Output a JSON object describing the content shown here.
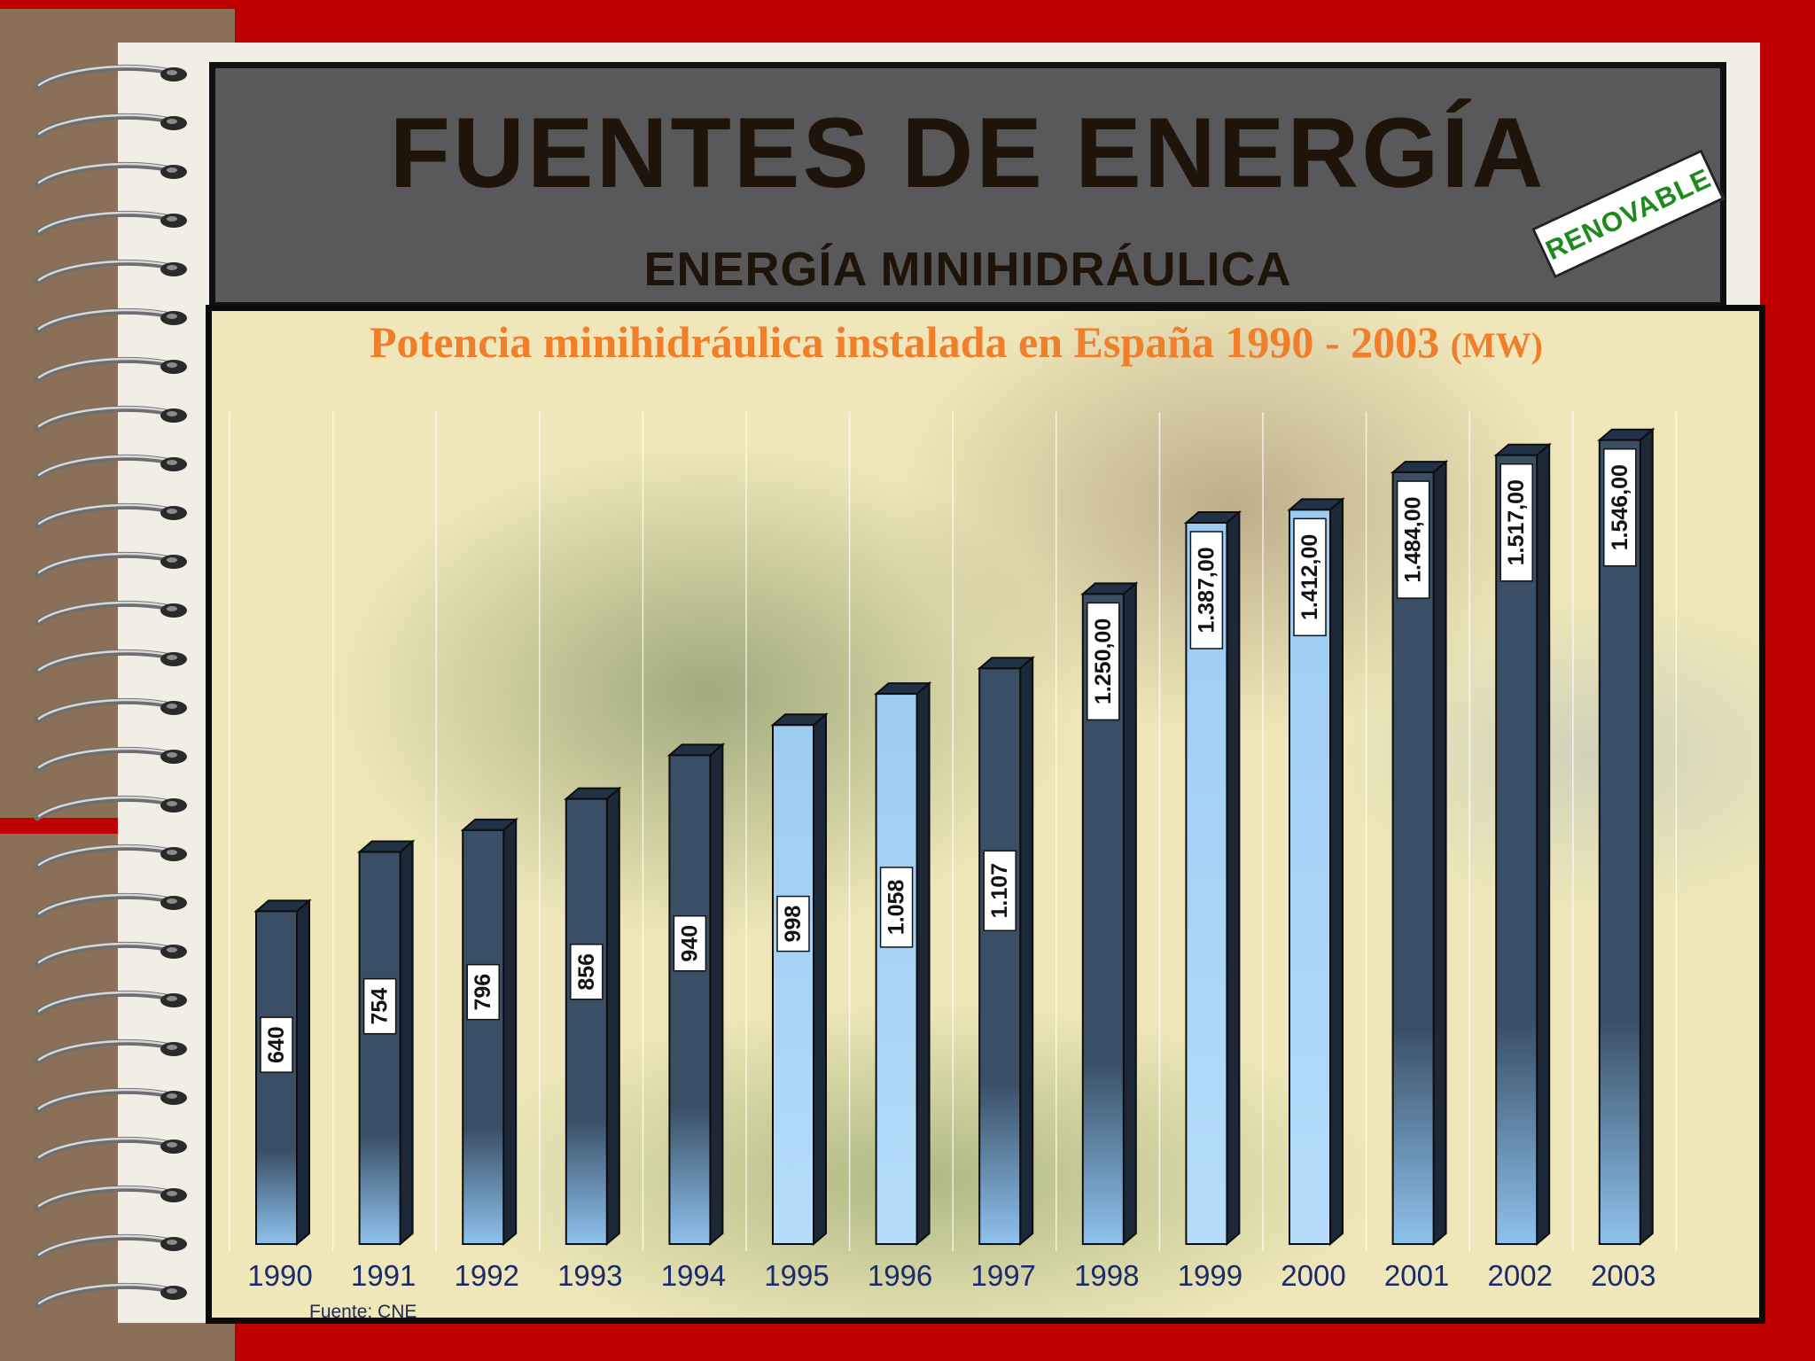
{
  "header": {
    "title": "FUENTES DE ENERGÍA",
    "subtitle": "ENERGÍA MINIHIDRÁULICA",
    "badge": "RENOVABLE"
  },
  "chart_data": {
    "type": "bar",
    "title": "Potencia minihidráulica instalada en España 1990 - 2003",
    "title_unit": "(MW)",
    "source": "Fuente: CNE",
    "xlabel": "",
    "ylabel": "",
    "categories": [
      "1990",
      "1991",
      "1992",
      "1993",
      "1994",
      "1995",
      "1996",
      "1997",
      "1998",
      "1999",
      "2000",
      "2001",
      "2002",
      "2003"
    ],
    "values": [
      640,
      754,
      796,
      856,
      940,
      998,
      1058,
      1107,
      1250,
      1387,
      1412,
      1484,
      1517,
      1546
    ],
    "value_labels": [
      "640",
      "754",
      "796",
      "856",
      "940",
      "998",
      "1.058",
      "1.107",
      "1.250,00",
      "1.387,00",
      "1.412,00",
      "1.484,00",
      "1.517,00",
      "1.546,00"
    ],
    "bar_color": "#3a4f66",
    "highlight_color": "#9ccbf2",
    "grid": "vertical",
    "legend": "none"
  }
}
